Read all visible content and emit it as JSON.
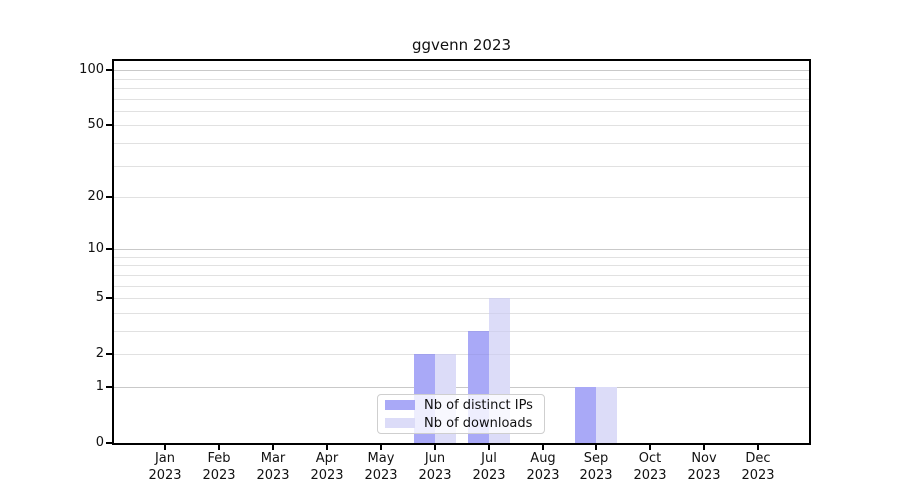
{
  "title": "ggvenn 2023",
  "chart_data": {
    "type": "bar",
    "title": "ggvenn 2023",
    "categories": [
      "Jan",
      "Feb",
      "Mar",
      "Apr",
      "May",
      "Jun",
      "Jul",
      "Aug",
      "Sep",
      "Oct",
      "Nov",
      "Dec"
    ],
    "category_year": "2023",
    "series": [
      {
        "name": "Nb of distinct IPs",
        "color": "#a9a9f7",
        "values": [
          0,
          0,
          0,
          0,
          0,
          2,
          3,
          0,
          1,
          0,
          0,
          0
        ]
      },
      {
        "name": "Nb of downloads",
        "color": "#dcdcf8",
        "values": [
          0,
          0,
          0,
          0,
          0,
          2,
          5,
          0,
          1,
          0,
          0,
          0
        ]
      }
    ],
    "xlabel": "",
    "ylabel": "",
    "y_scale": "log1p",
    "y_ticks": [
      0,
      1,
      2,
      5,
      10,
      20,
      50,
      100
    ],
    "y_minor_gridlines": [
      2,
      3,
      4,
      5,
      6,
      7,
      8,
      9,
      20,
      30,
      40,
      50,
      60,
      70,
      80,
      90
    ],
    "y_major_gridlines": [
      1,
      10,
      100
    ],
    "ylim": [
      0,
      113
    ],
    "grid": "horizontal",
    "legend_position": "lower center",
    "colors": {
      "axis": "#000000",
      "major_grid": "#c9c9c9",
      "minor_grid": "#ececec",
      "background": "#ffffff",
      "text": "#111111"
    }
  }
}
